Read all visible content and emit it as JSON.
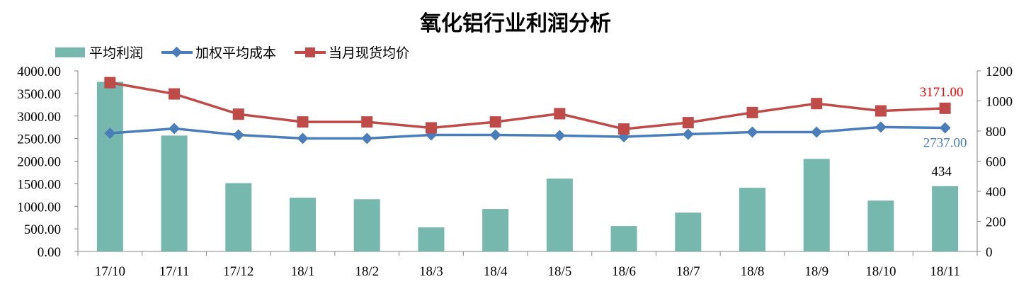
{
  "chart_data": {
    "type": "bar+line",
    "title": "氧化铝行业利润分析",
    "categories": [
      "17/10",
      "17/11",
      "17/12",
      "18/1",
      "18/2",
      "18/3",
      "18/4",
      "18/5",
      "18/6",
      "18/7",
      "18/8",
      "18/9",
      "18/10",
      "18/11"
    ],
    "left_axis": {
      "min": 0,
      "max": 4000,
      "step": 500,
      "ticks": [
        "0.00",
        "500.00",
        "1000.00",
        "1500.00",
        "2000.00",
        "2500.00",
        "3000.00",
        "3500.00",
        "4000.00"
      ]
    },
    "right_axis": {
      "min": 0,
      "max": 1200,
      "step": 200,
      "ticks": [
        "0",
        "200",
        "400",
        "600",
        "800",
        "1000",
        "1200"
      ]
    },
    "grid": false,
    "legend_position": "top-left",
    "series": [
      {
        "name": "平均利润",
        "type": "bar",
        "axis": "right",
        "color": "#77b8ae",
        "values": [
          1127,
          770,
          454,
          357,
          347,
          160,
          282,
          484,
          169,
          258,
          423,
          615,
          338,
          434
        ],
        "last_label": "434",
        "label_color": "#000000"
      },
      {
        "name": "加权平均成本",
        "type": "line",
        "marker": "diamond",
        "axis": "left",
        "color": "#4a7ebb",
        "values": [
          2618,
          2722,
          2581,
          2503,
          2503,
          2581,
          2581,
          2566,
          2540,
          2597,
          2644,
          2644,
          2754,
          2737
        ],
        "last_label": "2737.00",
        "label_color": "#4a7ebb"
      },
      {
        "name": "当月现货均价",
        "type": "line",
        "marker": "square",
        "axis": "left",
        "color": "#be4b48",
        "values": [
          3739,
          3489,
          3040,
          2868,
          2868,
          2738,
          2868,
          3051,
          2712,
          2853,
          3077,
          3275,
          3113,
          3171
        ],
        "last_label": "3171.00",
        "label_color": "#ff0000"
      }
    ]
  }
}
